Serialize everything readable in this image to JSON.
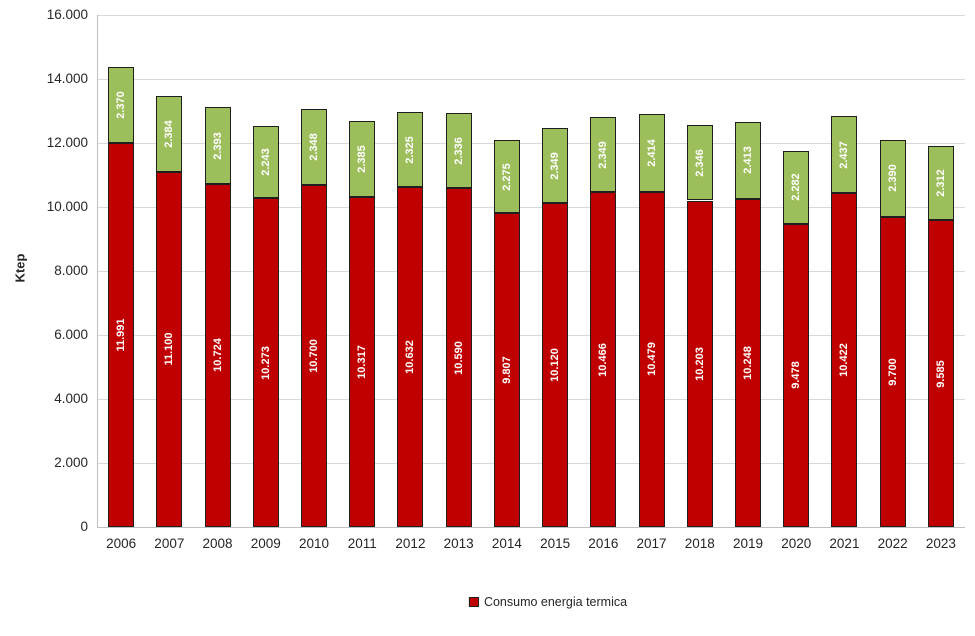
{
  "chart_data": {
    "type": "bar",
    "stacked": true,
    "title": "",
    "xlabel": "",
    "ylabel": "Ktep",
    "ylim": [
      0,
      16000
    ],
    "ytick_step": 2000,
    "ytick_labels": [
      "0",
      "2.000",
      "4.000",
      "6.000",
      "8.000",
      "10.000",
      "12.000",
      "14.000",
      "16.000"
    ],
    "grid": true,
    "categories": [
      "2006",
      "2007",
      "2008",
      "2009",
      "2010",
      "2011",
      "2012",
      "2013",
      "2014",
      "2015",
      "2016",
      "2017",
      "2018",
      "2019",
      "2020",
      "2021",
      "2022",
      "2023"
    ],
    "series": [
      {
        "name": "Consumo energia termica",
        "color": "#C00000",
        "values": [
          11991,
          11100,
          10724,
          10273,
          10700,
          10317,
          10632,
          10590,
          9807,
          10120,
          10466,
          10479,
          10203,
          10248,
          9478,
          10422,
          9700,
          9585
        ],
        "labels": [
          "11.991",
          "11.100",
          "10.724",
          "10.273",
          "10.700",
          "10.317",
          "10.632",
          "10.590",
          "9.807",
          "10.120",
          "10.466",
          "10.479",
          "10.203",
          "10.248",
          "9.478",
          "10.422",
          "9.700",
          "9.585"
        ]
      },
      {
        "name": "",
        "color": "#9CBE5B",
        "values": [
          2370,
          2384,
          2393,
          2243,
          2348,
          2385,
          2325,
          2336,
          2275,
          2349,
          2349,
          2414,
          2346,
          2413,
          2282,
          2437,
          2390,
          2312
        ],
        "labels": [
          "2.370",
          "2.384",
          "2.393",
          "2.243",
          "2.348",
          "2.385",
          "2.325",
          "2.336",
          "2.275",
          "2.349",
          "2.349",
          "2.414",
          "2.346",
          "2.413",
          "2.282",
          "2.437",
          "2.390",
          "2.312"
        ]
      }
    ],
    "legend": {
      "position": "bottom",
      "entries": [
        {
          "label": "Consumo energia termica",
          "color": "#C00000"
        }
      ]
    },
    "colors": {
      "bar_label_text": "#FFFFFF",
      "bar_border": "#1F1F1F",
      "gridline": "#D9D9D9",
      "axis_line": "#BFBFBF",
      "axis_text": "#262626"
    }
  }
}
